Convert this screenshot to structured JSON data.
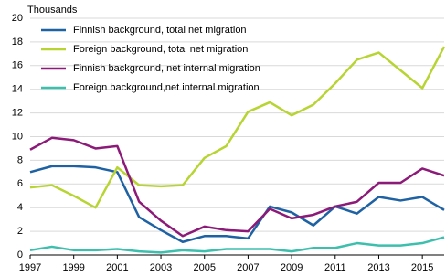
{
  "chart_data": {
    "type": "line",
    "y_label": "Thousands",
    "x": [
      1997,
      1998,
      1999,
      2000,
      2001,
      2002,
      2003,
      2004,
      2005,
      2006,
      2007,
      2008,
      2009,
      2010,
      2011,
      2012,
      2013,
      2014,
      2015,
      2016
    ],
    "xlim": [
      1997,
      2016
    ],
    "xticks": [
      1997,
      1999,
      2001,
      2003,
      2005,
      2007,
      2009,
      2011,
      2013,
      2015
    ],
    "ylim": [
      0,
      20
    ],
    "yticks": [
      0,
      2,
      4,
      6,
      8,
      10,
      12,
      14,
      16,
      18,
      20
    ],
    "grid": true,
    "legend": "upper left",
    "series": [
      {
        "name": "Finnish background, total net migration",
        "color": "#1f62a3",
        "values": [
          7.0,
          7.5,
          7.5,
          7.4,
          7.0,
          3.2,
          2.1,
          1.1,
          1.6,
          1.6,
          1.4,
          4.1,
          3.6,
          2.5,
          4.1,
          3.5,
          4.9,
          4.6,
          4.9,
          3.8
        ]
      },
      {
        "name": "Foreign background, total net migration",
        "color": "#b7d433",
        "values": [
          5.7,
          5.9,
          5.0,
          4.0,
          7.4,
          5.9,
          5.8,
          5.9,
          8.2,
          9.2,
          12.1,
          12.9,
          11.8,
          12.7,
          14.5,
          16.5,
          17.1,
          15.6,
          14.1,
          17.6
        ]
      },
      {
        "name": "Finnish background, net internal migration",
        "color": "#8c1a78",
        "values": [
          8.9,
          9.9,
          9.7,
          9.0,
          9.2,
          4.5,
          2.9,
          1.6,
          2.4,
          2.1,
          2.0,
          3.9,
          3.1,
          3.4,
          4.1,
          4.5,
          6.1,
          6.1,
          7.3,
          6.7
        ]
      },
      {
        "name": "Foreign background,net internal migration",
        "color": "#3dbfae",
        "values": [
          0.4,
          0.7,
          0.4,
          0.4,
          0.5,
          0.3,
          0.2,
          0.4,
          0.3,
          0.5,
          0.5,
          0.5,
          0.3,
          0.6,
          0.6,
          1.0,
          0.8,
          0.8,
          1.0,
          1.5
        ]
      }
    ]
  }
}
